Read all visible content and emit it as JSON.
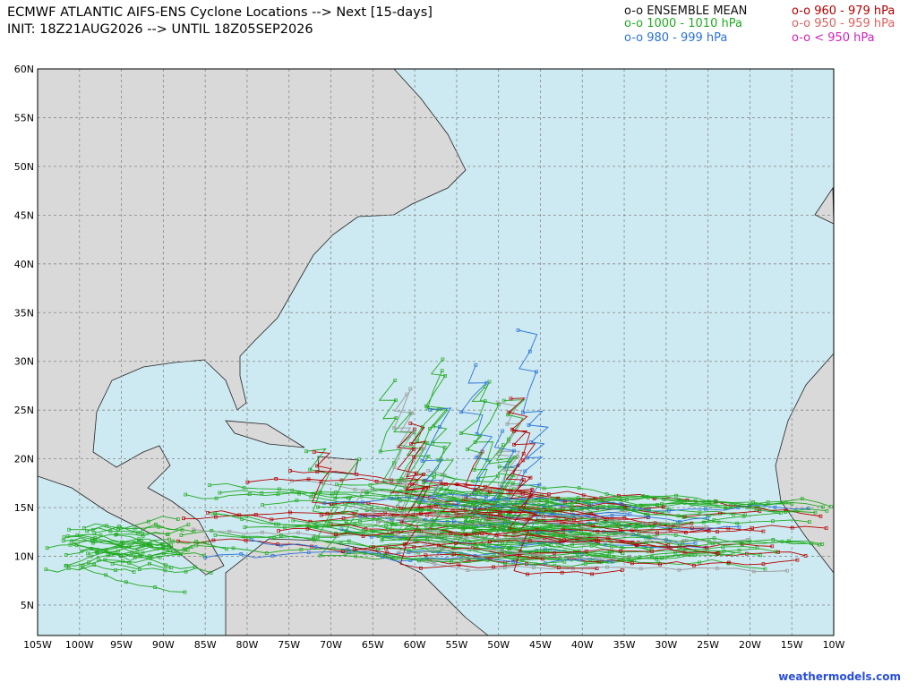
{
  "header": {
    "title": "ECMWF ATLANTIC AIFS-ENS Cyclone Locations --> Next [15-days]",
    "subtitle": "INIT: 18Z21AUG2026 --> UNTIL 18Z05SEP2026"
  },
  "legend": [
    {
      "label": "o-o ENSEMBLE MEAN",
      "color": "#111111"
    },
    {
      "label": "o-o 960 - 979 hPa",
      "color": "#b40000"
    },
    {
      "label": "o-o 1000 - 1010 hPa",
      "color": "#22aa22"
    },
    {
      "label": "o-o 950 - 959 hPa",
      "color": "#e06060"
    },
    {
      "label": "o-o 980 - 999 hPa",
      "color": "#2a72d8"
    },
    {
      "label": "o-o < 950 hPa",
      "color": "#d020c0"
    }
  ],
  "lat_labels": [
    "60N",
    "55N",
    "50N",
    "45N",
    "40N",
    "35N",
    "30N",
    "25N",
    "20N",
    "15N",
    "10N",
    "5N"
  ],
  "lon_labels": [
    "105W",
    "100W",
    "95W",
    "90W",
    "85W",
    "80W",
    "75W",
    "70W",
    "65W",
    "60W",
    "55W",
    "50W",
    "45W",
    "40W",
    "35W",
    "30W",
    "25W",
    "20W",
    "15W",
    "10W"
  ],
  "credit": "weathermodels.com"
}
